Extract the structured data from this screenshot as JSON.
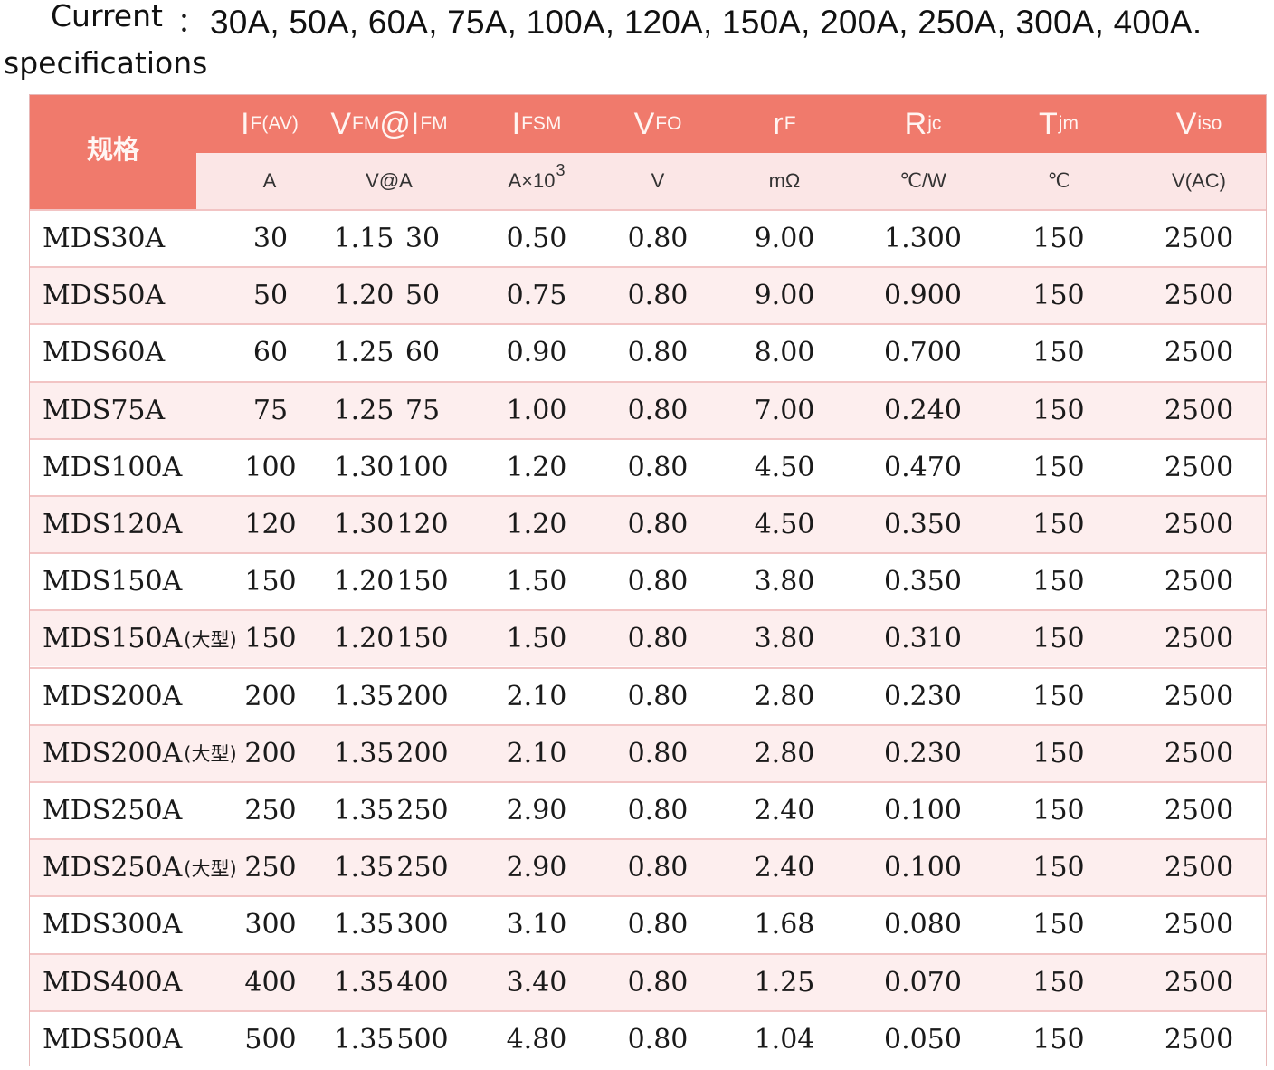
{
  "spec": {
    "label_line1": "Current",
    "label_line2": "specifications",
    "colon": "：",
    "values": "30A, 50A, 60A, 75A, 100A, 120A, 150A, 200A, 250A, 300A, 400A."
  },
  "table": {
    "spec_header": "规格",
    "columns": [
      {
        "sym": "I",
        "sub": "F(AV)",
        "unit": "A",
        "unit_sup": ""
      },
      {
        "sym": "V",
        "sub": "FM",
        "sym2": "@I",
        "sub2": "FM",
        "unit": "V@A",
        "unit_sup": ""
      },
      {
        "sym": "I",
        "sub": "FSM",
        "unit": "A×10",
        "unit_sup": "3"
      },
      {
        "sym": "V",
        "sub": "FO",
        "unit": "V",
        "unit_sup": ""
      },
      {
        "sym": "r",
        "sub": "F",
        "unit": "mΩ",
        "unit_sup": ""
      },
      {
        "sym": "R",
        "sub": "jc",
        "unit": "℃/W",
        "unit_sup": ""
      },
      {
        "sym": "T",
        "sub": "jm",
        "unit": "℃",
        "unit_sup": ""
      },
      {
        "sym": "V",
        "sub": "iso",
        "unit": "V(AC)",
        "unit_sup": ""
      }
    ],
    "rows": [
      {
        "model": "MDS30A",
        "suffix": "",
        "if": "30",
        "vfm": "1.15",
        "ifm": "30",
        "ifsm": "0.50",
        "vfo": "0.80",
        "rf": "9.00",
        "rjc": "1.300",
        "tjm": "150",
        "viso": "2500"
      },
      {
        "model": "MDS50A",
        "suffix": "",
        "if": "50",
        "vfm": "1.20",
        "ifm": "50",
        "ifsm": "0.75",
        "vfo": "0.80",
        "rf": "9.00",
        "rjc": "0.900",
        "tjm": "150",
        "viso": "2500"
      },
      {
        "model": "MDS60A",
        "suffix": "",
        "if": "60",
        "vfm": "1.25",
        "ifm": "60",
        "ifsm": "0.90",
        "vfo": "0.80",
        "rf": "8.00",
        "rjc": "0.700",
        "tjm": "150",
        "viso": "2500"
      },
      {
        "model": "MDS75A",
        "suffix": "",
        "if": "75",
        "vfm": "1.25",
        "ifm": "75",
        "ifsm": "1.00",
        "vfo": "0.80",
        "rf": "7.00",
        "rjc": "0.240",
        "tjm": "150",
        "viso": "2500"
      },
      {
        "model": "MDS100A",
        "suffix": "",
        "if": "100",
        "vfm": "1.30",
        "ifm": "100",
        "ifsm": "1.20",
        "vfo": "0.80",
        "rf": "4.50",
        "rjc": "0.470",
        "tjm": "150",
        "viso": "2500"
      },
      {
        "model": "MDS120A",
        "suffix": "",
        "if": "120",
        "vfm": "1.30",
        "ifm": "120",
        "ifsm": "1.20",
        "vfo": "0.80",
        "rf": "4.50",
        "rjc": "0.350",
        "tjm": "150",
        "viso": "2500"
      },
      {
        "model": "MDS150A",
        "suffix": "",
        "if": "150",
        "vfm": "1.20",
        "ifm": "150",
        "ifsm": "1.50",
        "vfo": "0.80",
        "rf": "3.80",
        "rjc": "0.350",
        "tjm": "150",
        "viso": "2500"
      },
      {
        "model": "MDS150A",
        "suffix": "(大型)",
        "if": "150",
        "vfm": "1.20",
        "ifm": "150",
        "ifsm": "1.50",
        "vfo": "0.80",
        "rf": "3.80",
        "rjc": "0.310",
        "tjm": "150",
        "viso": "2500"
      },
      {
        "model": "MDS200A",
        "suffix": "",
        "if": "200",
        "vfm": "1.35",
        "ifm": "200",
        "ifsm": "2.10",
        "vfo": "0.80",
        "rf": "2.80",
        "rjc": "0.230",
        "tjm": "150",
        "viso": "2500"
      },
      {
        "model": "MDS200A",
        "suffix": "(大型)",
        "if": "200",
        "vfm": "1.35",
        "ifm": "200",
        "ifsm": "2.10",
        "vfo": "0.80",
        "rf": "2.80",
        "rjc": "0.230",
        "tjm": "150",
        "viso": "2500"
      },
      {
        "model": "MDS250A",
        "suffix": "",
        "if": "250",
        "vfm": "1.35",
        "ifm": "250",
        "ifsm": "2.90",
        "vfo": "0.80",
        "rf": "2.40",
        "rjc": "0.100",
        "tjm": "150",
        "viso": "2500"
      },
      {
        "model": "MDS250A",
        "suffix": "(大型)",
        "if": "250",
        "vfm": "1.35",
        "ifm": "250",
        "ifsm": "2.90",
        "vfo": "0.80",
        "rf": "2.40",
        "rjc": "0.100",
        "tjm": "150",
        "viso": "2500"
      },
      {
        "model": "MDS300A",
        "suffix": "",
        "if": "300",
        "vfm": "1.35",
        "ifm": "300",
        "ifsm": "3.10",
        "vfo": "0.80",
        "rf": "1.68",
        "rjc": "0.080",
        "tjm": "150",
        "viso": "2500"
      },
      {
        "model": "MDS400A",
        "suffix": "",
        "if": "400",
        "vfm": "1.35",
        "ifm": "400",
        "ifsm": "3.40",
        "vfo": "0.80",
        "rf": "1.25",
        "rjc": "0.070",
        "tjm": "150",
        "viso": "2500"
      },
      {
        "model": "MDS500A",
        "suffix": "",
        "if": "500",
        "vfm": "1.35",
        "ifm": "500",
        "ifsm": "4.80",
        "vfo": "0.80",
        "rf": "1.04",
        "rjc": "0.050",
        "tjm": "150",
        "viso": "2500"
      }
    ]
  }
}
